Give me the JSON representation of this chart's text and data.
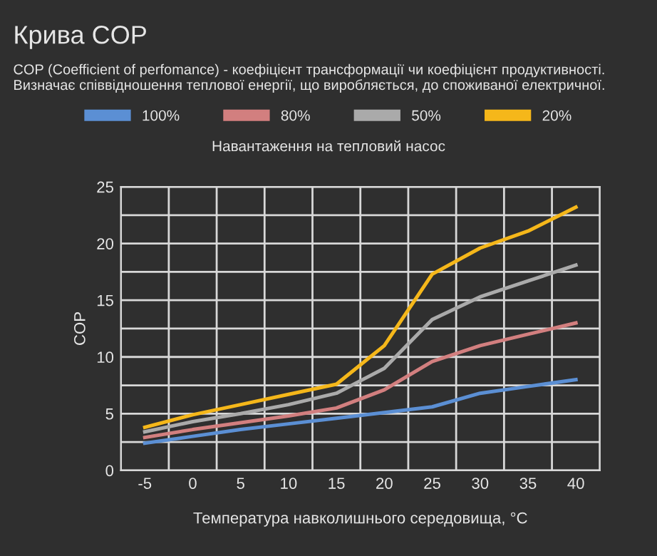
{
  "chart_data": {
    "type": "line",
    "title": "Крива COP",
    "subtitle": "COP (Coefficient of perfomance) - коефіцієнт трансформації чи коефіцієнт продуктивності. Визначає співвідношення теплової енергії, що виробляється, до споживаної електричної.",
    "xlabel": "Температура навколишнього середовища, °C",
    "ylabel": "COP",
    "legend_title": "Навантаження на тепловий насос",
    "legend": "top",
    "grid": true,
    "marker": "none",
    "line_style": "solid",
    "categories": [
      "-5",
      "0",
      "5",
      "10",
      "15",
      "20",
      "25",
      "30",
      "35",
      "40"
    ],
    "ylim": [
      0,
      25
    ],
    "yticks": [
      0,
      {
        "value": 2.5,
        "label": null
      },
      5,
      {
        "value": 7.5,
        "label": null
      },
      10,
      {
        "value": 12.5,
        "label": null
      },
      15,
      {
        "value": 17.5,
        "label": null
      },
      20,
      {
        "value": 22.5,
        "label": null
      },
      25
    ],
    "series": [
      {
        "name": "100%",
        "color": "#5b8fd4",
        "values": [
          2.4,
          3.0,
          3.6,
          4.1,
          4.6,
          5.1,
          5.6,
          6.8,
          7.4,
          8.0
        ]
      },
      {
        "name": "80%",
        "color": "#d27f7f",
        "values": [
          2.9,
          3.6,
          4.2,
          4.8,
          5.5,
          7.1,
          9.6,
          11.0,
          12.0,
          13.0
        ]
      },
      {
        "name": "50%",
        "color": "#aaaaaa",
        "values": [
          3.4,
          4.3,
          5.0,
          5.8,
          6.8,
          9.0,
          13.3,
          15.3,
          16.7,
          18.1
        ]
      },
      {
        "name": "20%",
        "color": "#f5b71a",
        "values": [
          3.8,
          4.9,
          5.8,
          6.7,
          7.6,
          11.0,
          17.3,
          19.6,
          21.1,
          23.2
        ]
      }
    ]
  }
}
